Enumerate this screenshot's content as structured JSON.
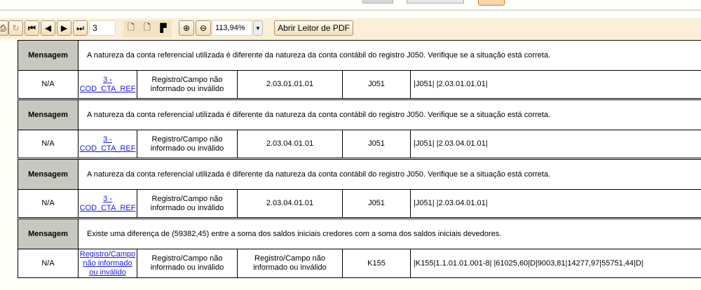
{
  "toolbar": {
    "page": "3",
    "zoom": "113,94%",
    "open_reader": "Abrir Leitor de PDF"
  },
  "rows": [
    {
      "label": "Mensagem",
      "message": "A natureza da conta referencial utilizada é diferente da natureza da conta contábil do registro J050. Verifique se a situação está correta.",
      "c1": "N/A",
      "c2": "3 - COD_CTA_REF",
      "c3": "Registro/Campo não informado ou inválido",
      "c4": "2.03.01.01.01",
      "c5": "J051",
      "c6": "|J051| |2.03.01.01.01|"
    },
    {
      "label": "Mensagem",
      "message": "A natureza da conta referencial utilizada é diferente da natureza da conta contábil do registro J050. Verifique se a situação está correta.",
      "c1": "N/A",
      "c2": "3 - COD_CTA_REF",
      "c3": "Registro/Campo não informado ou inválido",
      "c4": "2.03.04.01.01",
      "c5": "J051",
      "c6": "|J051| |2.03.04.01.01|"
    },
    {
      "label": "Mensagem",
      "message": "A natureza da conta referencial utilizada é diferente da natureza da conta contábil do registro J050. Verifique se a situação está correta.",
      "c1": "N/A",
      "c2": "3 - COD_CTA_REF",
      "c3": "Registro/Campo não informado ou inválido",
      "c4": "2.03.04.01.01",
      "c5": "J051",
      "c6": "|J051| |2.03.04.01.01|"
    },
    {
      "label": "Mensagem",
      "message": "Existe uma diferença de (59382,45) entre a soma dos saldos iniciais credores com a soma dos saldos iniciais devedores.",
      "c1": "N/A",
      "c2": "Registro/Campo não informado ou inválido",
      "c3": "Registro/Campo não informado ou inválido",
      "c4": "Registro/Campo não informado ou inválido",
      "c5": "K155",
      "c6": "|K155|1.1.01.01.001-8| |61025,60|D|9003,81|14277,97|55751,44|D|"
    }
  ]
}
